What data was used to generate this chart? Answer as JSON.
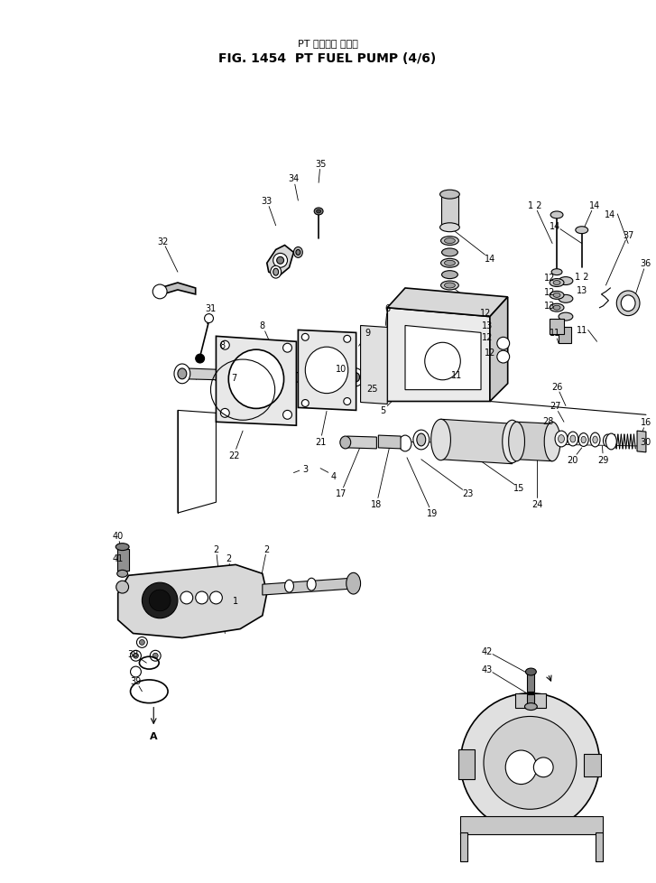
{
  "title_jp": "PT フェエル ポンプ",
  "title_en": "FIG. 1454  PT FUEL PUMP (4/6)",
  "bg": "#ffffff",
  "fg": "#000000",
  "fw": 7.27,
  "fh": 9.79,
  "dpi": 100
}
